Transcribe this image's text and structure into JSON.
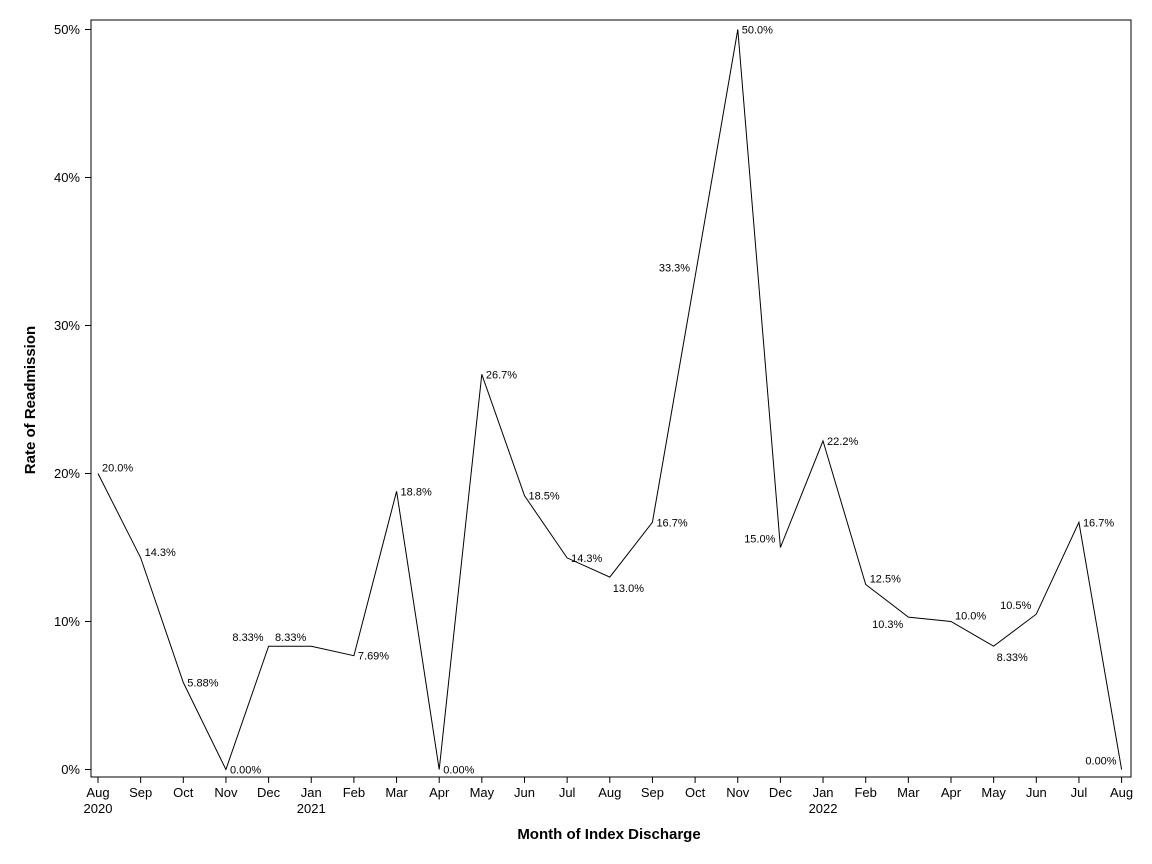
{
  "chart_data": {
    "type": "line",
    "xlabel": "Month of Index Discharge",
    "ylabel": "Rate of Readmission",
    "ylim": [
      0,
      50
    ],
    "y_ticks": [
      "0%",
      "10%",
      "20%",
      "30%",
      "40%",
      "50%"
    ],
    "y_tick_values": [
      0,
      10,
      20,
      30,
      40,
      50
    ],
    "x_tick_labels": [
      "Aug",
      "Sep",
      "Oct",
      "Nov",
      "Dec",
      "Jan",
      "Feb",
      "Mar",
      "Apr",
      "May",
      "Jun",
      "Jul",
      "Aug",
      "Sep",
      "Oct",
      "Nov",
      "Dec",
      "Jan",
      "Feb",
      "Mar",
      "Apr",
      "May",
      "Jun",
      "Jul",
      "Aug"
    ],
    "x_year_labels": [
      "2020",
      "",
      "",
      "",
      "",
      "2021",
      "",
      "",
      "",
      "",
      "",
      "",
      "",
      "",
      "",
      "",
      "",
      "2022",
      "",
      "",
      "",
      "",
      "",
      "",
      ""
    ],
    "x": [
      "2020-08",
      "2020-09",
      "2020-10",
      "2020-11",
      "2020-12",
      "2021-01",
      "2021-02",
      "2021-03",
      "2021-04",
      "2021-05",
      "2021-06",
      "2021-07",
      "2021-08",
      "2021-09",
      "2021-10",
      "2021-11",
      "2021-12",
      "2022-01",
      "2022-02",
      "2022-03",
      "2022-04",
      "2022-05",
      "2022-06",
      "2022-07",
      "2022-08"
    ],
    "values": [
      20.0,
      14.3,
      5.88,
      0.0,
      8.33,
      8.33,
      7.69,
      18.8,
      0.0,
      26.7,
      18.5,
      14.3,
      13.0,
      16.7,
      33.3,
      50.0,
      15.0,
      22.2,
      12.5,
      10.3,
      10.0,
      8.33,
      10.5,
      16.7,
      0.0
    ],
    "value_labels": [
      "20.0%",
      "14.3%",
      "5.88%",
      "0.00%",
      "8.33%",
      "8.33%",
      "7.69%",
      "18.8%",
      "0.00%",
      "26.7%",
      "18.5%",
      "14.3%",
      "13.0%",
      "16.7%",
      "33.3%",
      "50.0%",
      "15.0%",
      "22.2%",
      "12.5%",
      "10.3%",
      "10.0%",
      "8.33%",
      "10.5%",
      "16.7%",
      "0.00%"
    ],
    "grid": false,
    "line_color": "#000000"
  }
}
